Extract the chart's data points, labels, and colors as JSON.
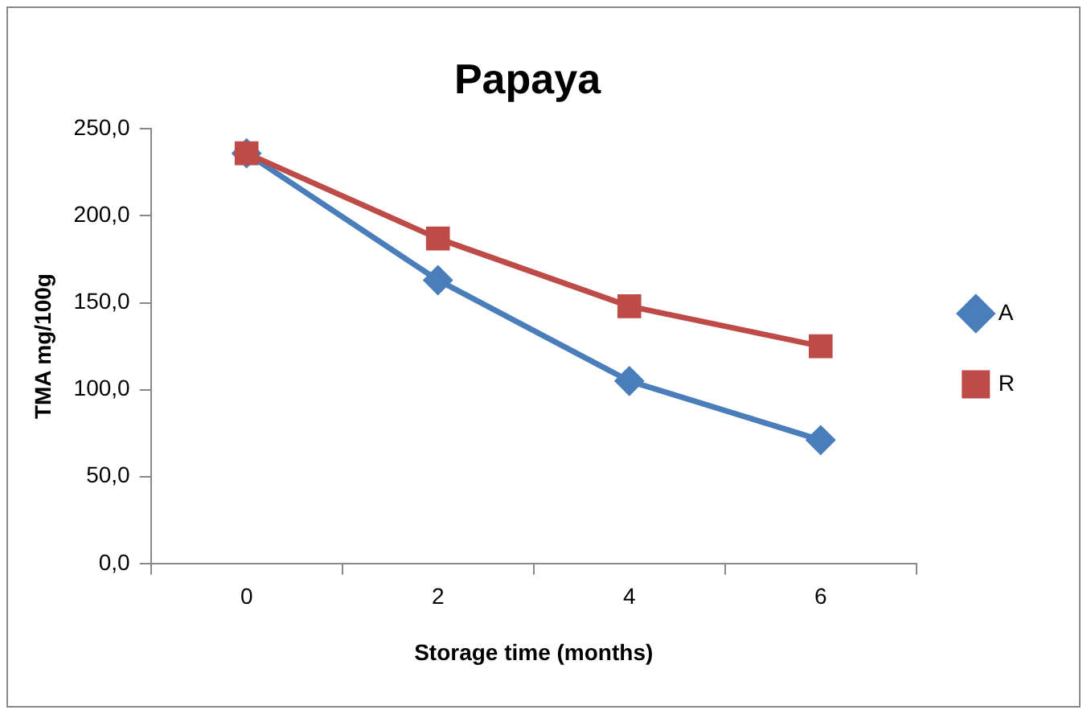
{
  "chart_data": {
    "type": "line",
    "title": "Papaya",
    "xlabel": "Storage time (months)",
    "ylabel": "TMA mg/100g",
    "categories": [
      "0",
      "2",
      "4",
      "6"
    ],
    "series": [
      {
        "name": "A",
        "color": "#4a7ebb",
        "marker": "diamond",
        "values": [
          236,
          163,
          105,
          71
        ]
      },
      {
        "name": "R",
        "color": "#be4b48",
        "marker": "square",
        "values": [
          236,
          187,
          148,
          125
        ]
      }
    ],
    "ylim": [
      0,
      250
    ],
    "yticks": [
      {
        "value": 0,
        "label": "0,0"
      },
      {
        "value": 50,
        "label": "50,0"
      },
      {
        "value": 100,
        "label": "100,0"
      },
      {
        "value": 150,
        "label": "150,0"
      },
      {
        "value": 200,
        "label": "200,0"
      },
      {
        "value": 250,
        "label": "250,0"
      }
    ],
    "grid": false,
    "legend": "right"
  }
}
